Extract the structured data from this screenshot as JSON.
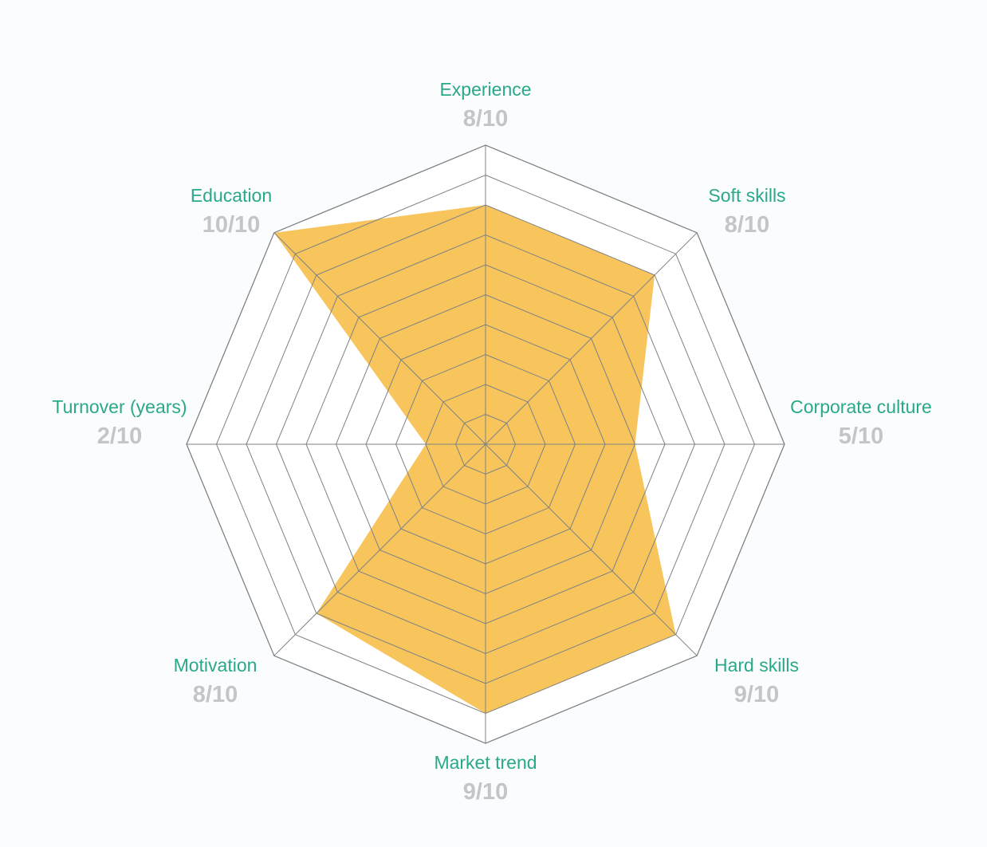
{
  "colors": {
    "background": "#fbfcfd",
    "fill": "#f8c55c",
    "grid": "#7d8284",
    "label": "#2aa98a",
    "value": "#c4c5c7"
  },
  "chart_data": {
    "type": "radar",
    "max": 10,
    "grid_levels": 10,
    "axes": [
      {
        "label": "Experience",
        "value": 8,
        "value_text": "8/10"
      },
      {
        "label": "Soft skills",
        "value": 8,
        "value_text": "8/10"
      },
      {
        "label": "Corporate culture",
        "value": 5,
        "value_text": "5/10"
      },
      {
        "label": "Hard skills",
        "value": 9,
        "value_text": "9/10"
      },
      {
        "label": "Market trend",
        "value": 9,
        "value_text": "9/10"
      },
      {
        "label": "Motivation",
        "value": 8,
        "value_text": "8/10"
      },
      {
        "label": "Turnover (years)",
        "value": 2,
        "value_text": "2/10"
      },
      {
        "label": "Education",
        "value": 10,
        "value_text": "10/10"
      }
    ]
  }
}
